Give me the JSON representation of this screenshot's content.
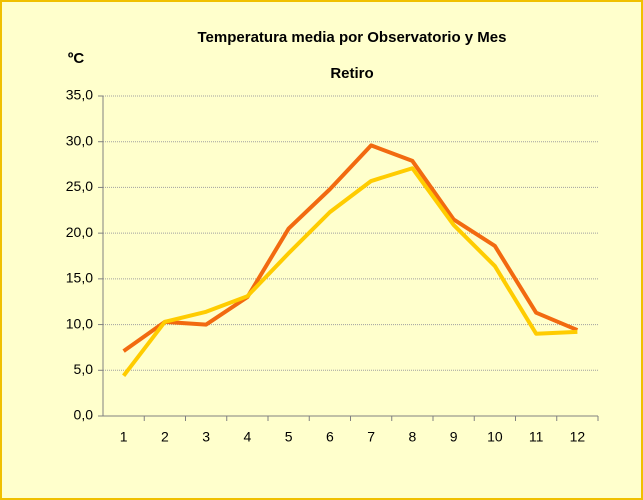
{
  "chart_data": {
    "type": "line",
    "title": "Temperatura media por Observatorio y Mes",
    "subtitle": "Retiro",
    "y_label": "ºC",
    "categories": [
      "1",
      "2",
      "3",
      "4",
      "5",
      "6",
      "7",
      "8",
      "9",
      "10",
      "11",
      "12"
    ],
    "series": [
      {
        "color": "#f26a10",
        "values": [
          7.1,
          10.3,
          10.0,
          13.0,
          20.5,
          24.8,
          29.6,
          27.9,
          21.5,
          18.6,
          11.3,
          9.4
        ]
      },
      {
        "color": "#ffcc00",
        "values": [
          4.4,
          10.3,
          11.4,
          13.1,
          17.8,
          22.3,
          25.7,
          27.1,
          20.9,
          16.4,
          9.0,
          9.2
        ]
      }
    ],
    "ylim": [
      0,
      35
    ],
    "yticks": [
      {
        "value": 0,
        "label": "0,0"
      },
      {
        "value": 5,
        "label": "5,0"
      },
      {
        "value": 10,
        "label": "10,0"
      },
      {
        "value": 15,
        "label": "15,0"
      },
      {
        "value": 20,
        "label": "20,0"
      },
      {
        "value": 25,
        "label": "25,0"
      },
      {
        "value": 30,
        "label": "30,0"
      },
      {
        "value": 35,
        "label": "35,0"
      }
    ],
    "grid": true
  }
}
